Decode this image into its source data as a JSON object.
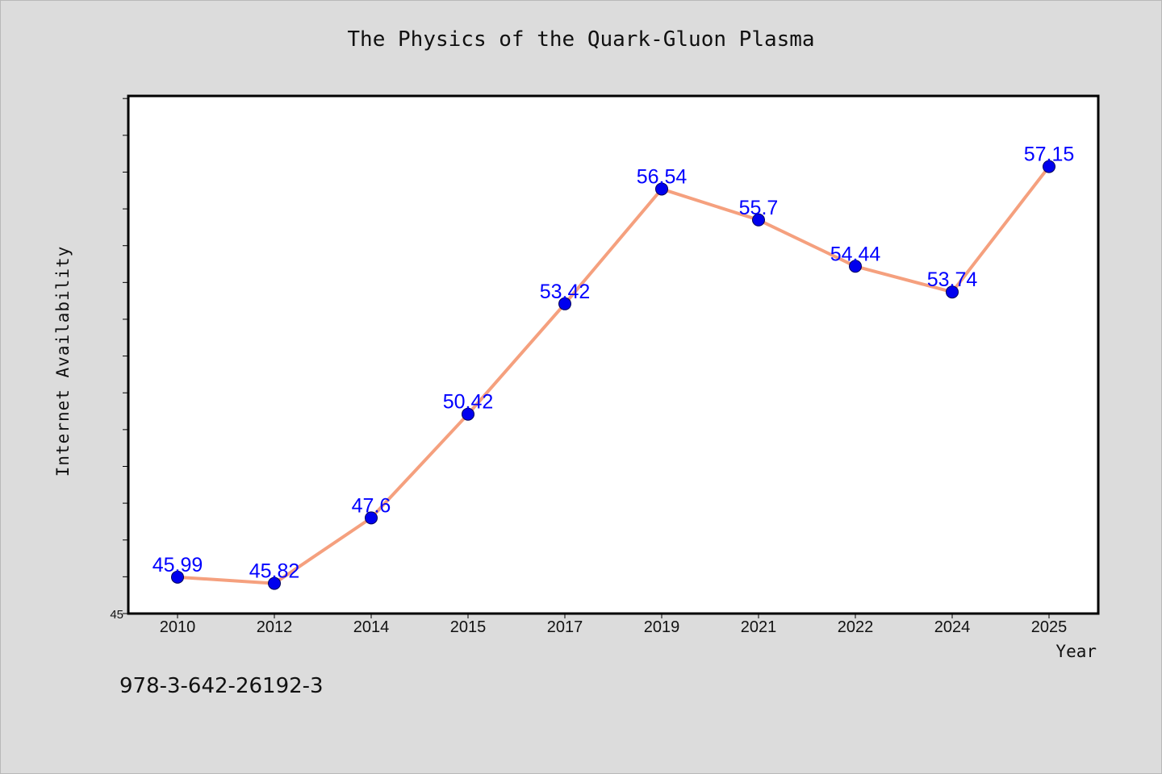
{
  "chart_data": {
    "type": "line",
    "title": "The Physics of the Quark-Gluon Plasma",
    "xlabel": "Year",
    "ylabel": "Internet Availability",
    "categories": [
      "2010",
      "2012",
      "2014",
      "2015",
      "2017",
      "2019",
      "2021",
      "2022",
      "2024",
      "2025"
    ],
    "series": [
      {
        "values": [
          45.99,
          45.82,
          47.6,
          50.42,
          53.42,
          56.54,
          55.7,
          54.44,
          53.74,
          57.15
        ],
        "labels": [
          "45.99",
          "45.82",
          "47.6",
          "50.42",
          "53.42",
          "56.54",
          "55.7",
          "54.44",
          "53.74",
          "57.15"
        ]
      }
    ],
    "ylim": [
      45,
      59.07
    ],
    "y_tick_step": 1,
    "y_tick_labels": [
      "45"
    ],
    "grid": false,
    "legend": "none",
    "colors": {
      "line": "#f5a07e",
      "marker": "#0000ee",
      "data_label": "#0000ff",
      "plot_background": "#ffffff",
      "page_background": "#dcdcdc"
    }
  },
  "footer": {
    "isbn": "978-3-642-26192-3"
  }
}
